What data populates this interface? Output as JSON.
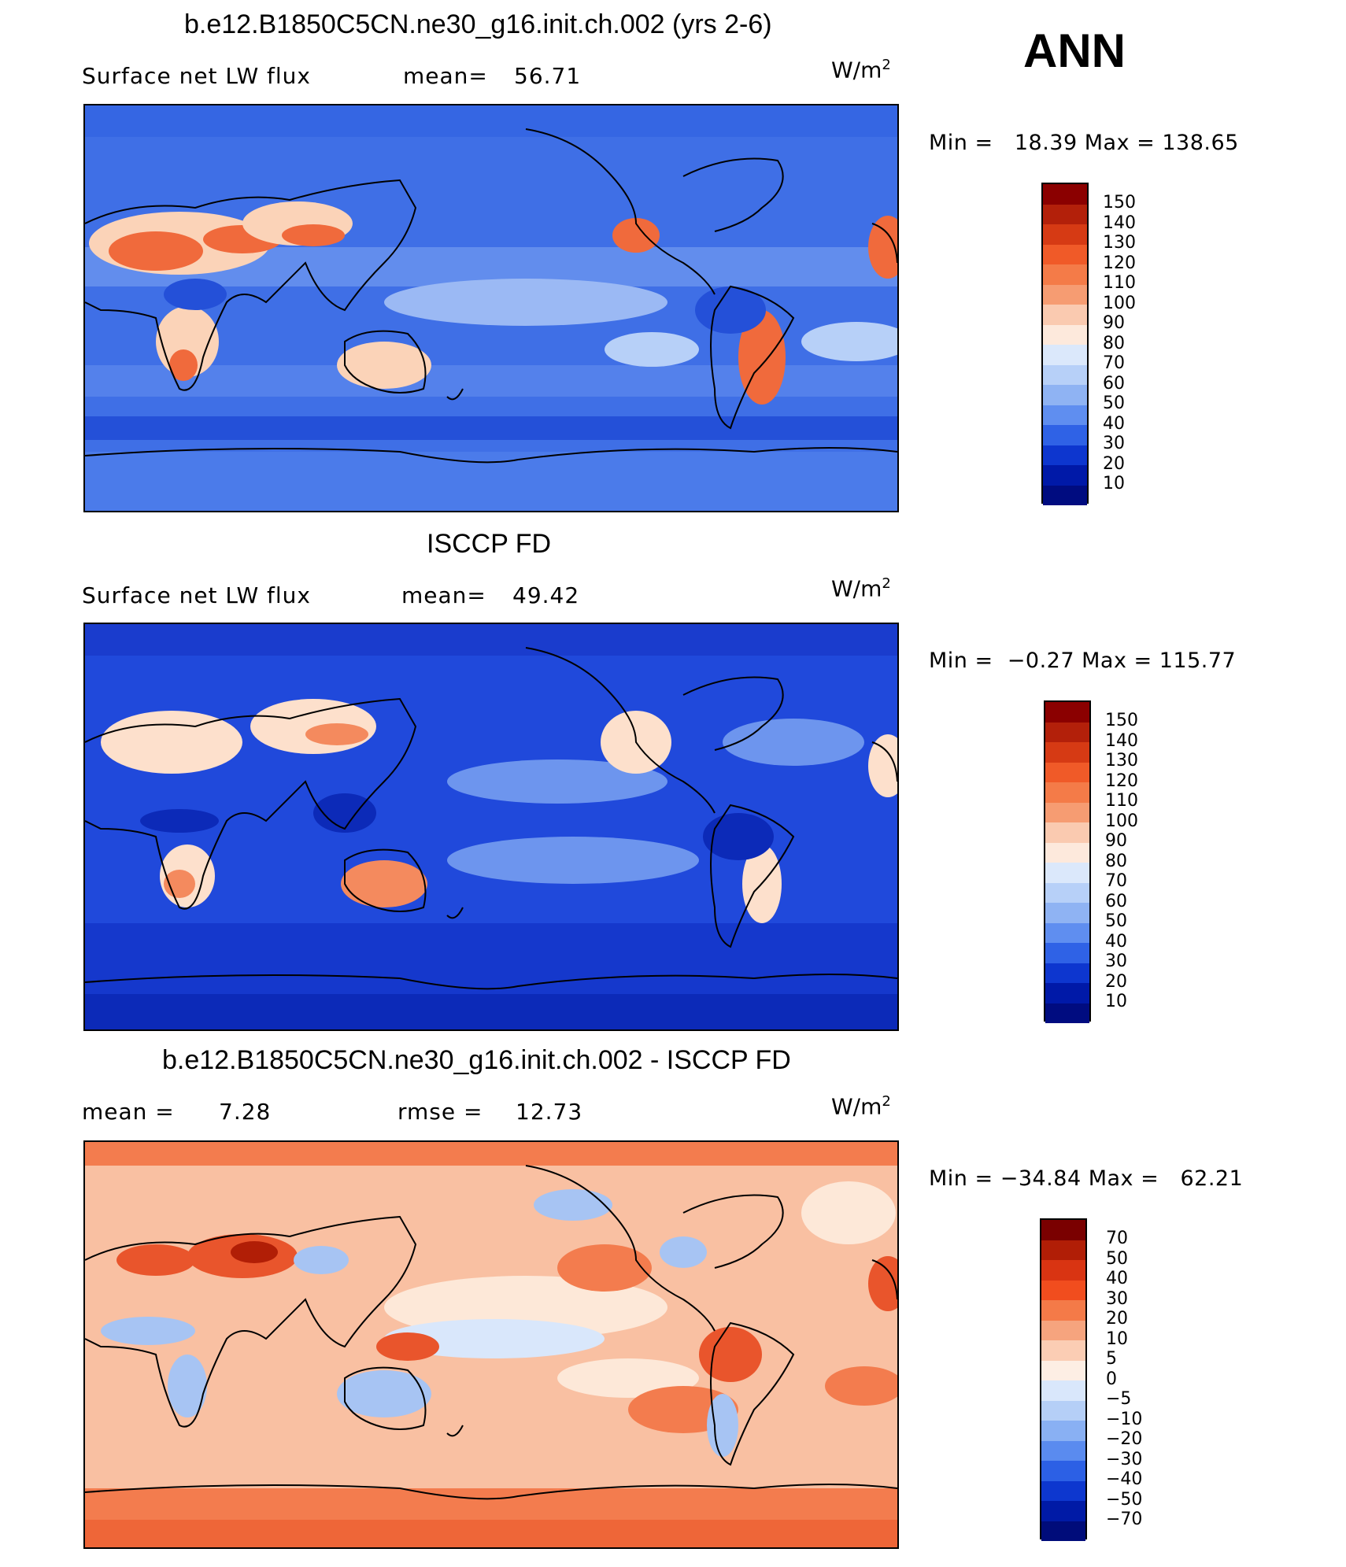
{
  "season": "ANN",
  "panels": [
    {
      "title": "b.e12.B1850C5CN.ne30_g16.init.ch.002 (yrs 2-6)",
      "left_label": "Surface net LW flux",
      "middle_label": "mean=",
      "middle_value": "56.71",
      "units_base": "W/m",
      "units_exp": "2",
      "minmax": "Min =   18.39 Max = 138.65",
      "colorbar_labels": [
        "150",
        "140",
        "130",
        "120",
        "110",
        "100",
        "90",
        "80",
        "70",
        "60",
        "50",
        "40",
        "30",
        "20",
        "10"
      ],
      "colors": {
        "background": "#3f6fe6",
        "land_hot": "#f06a3c",
        "land_warm": "#fbd3b8",
        "cool": "#9bb9f4"
      }
    },
    {
      "title": "ISCCP FD",
      "left_label": "Surface net LW flux",
      "middle_label": "mean=",
      "middle_value": "49.42",
      "units_base": "W/m",
      "units_exp": "2",
      "minmax": "Min =  −0.27 Max = 115.77",
      "colorbar_labels": [
        "150",
        "140",
        "130",
        "120",
        "110",
        "100",
        "90",
        "80",
        "70",
        "60",
        "50",
        "40",
        "30",
        "20",
        "10"
      ],
      "colors": {
        "background": "#2049db",
        "land_hot": "#f48a5e",
        "land_warm": "#fde0cc",
        "cool": "#6d95ee"
      }
    },
    {
      "title": "b.e12.B1850C5CN.ne30_g16.init.ch.002 - ISCCP FD",
      "left_label": "mean =",
      "left_value": "7.28",
      "middle_label": "rmse =",
      "middle_value": "12.73",
      "units_base": "W/m",
      "units_exp": "2",
      "minmax": "Min = −34.84 Max =   62.21",
      "colorbar_labels": [
        "70",
        "50",
        "40",
        "30",
        "20",
        "10",
        "5",
        "0",
        "−5",
        "−10",
        "−20",
        "−30",
        "−40",
        "−50",
        "−70"
      ],
      "colors": {
        "background": "#f9c0a2",
        "land_hot": "#e9552c",
        "land_warm": "#fde8d8",
        "cool": "#a7c4f3"
      }
    }
  ],
  "colorbar_colors_flux": [
    "#8b0000",
    "#b3200a",
    "#d63a14",
    "#f05a28",
    "#f47b48",
    "#f69c72",
    "#facab0",
    "#fde9dc",
    "#dbe8fb",
    "#b7d0f8",
    "#8fb3f3",
    "#5f8ef0",
    "#2f62e6",
    "#0d36cf",
    "#0019a8",
    "#000c80"
  ],
  "colorbar_colors_diff": [
    "#7a0000",
    "#b11e06",
    "#d93412",
    "#f14d1e",
    "#f47a48",
    "#f6a47e",
    "#fbcdb4",
    "#fdeee4",
    "#d9e7fb",
    "#b5cff7",
    "#89b0f3",
    "#5a8bef",
    "#2c60e5",
    "#0d37cf",
    "#001aa6",
    "#000c7a"
  ]
}
